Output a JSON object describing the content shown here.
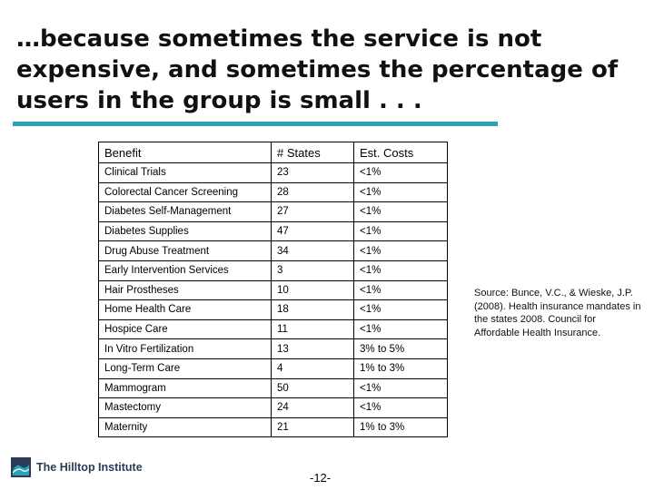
{
  "slide": {
    "title": "…because sometimes the service is not expensive, and sometimes the percentage of users in the group is small . . .",
    "page_number": "-12-",
    "source_note": "Source: Bunce, V.C., & Wieske, J.P. (2008). Health insurance mandates in the states 2008. Council for Affordable Health Insurance.",
    "logo_text": "The Hilltop Institute",
    "accent_color": "#2aa3b8"
  },
  "table": {
    "headers": [
      "Benefit",
      "# States",
      "Est. Costs"
    ],
    "rows": [
      [
        "Clinical Trials",
        "23",
        "<1%"
      ],
      [
        "Colorectal Cancer Screening",
        "28",
        "<1%"
      ],
      [
        "Diabetes Self-Management",
        "27",
        "<1%"
      ],
      [
        "Diabetes Supplies",
        "47",
        "<1%"
      ],
      [
        "Drug Abuse Treatment",
        "34",
        "<1%"
      ],
      [
        "Early Intervention Services",
        "3",
        "<1%"
      ],
      [
        "Hair Prostheses",
        "10",
        "<1%"
      ],
      [
        "Home Health Care",
        "18",
        "<1%"
      ],
      [
        "Hospice Care",
        "11",
        "<1%"
      ],
      [
        "In Vitro Fertilization",
        "13",
        "3% to 5%"
      ],
      [
        "Long-Term Care",
        "4",
        "1% to 3%"
      ],
      [
        "Mammogram",
        "50",
        "<1%"
      ],
      [
        "Mastectomy",
        "24",
        "<1%"
      ],
      [
        "Maternity",
        "21",
        "1% to 3%"
      ]
    ]
  }
}
